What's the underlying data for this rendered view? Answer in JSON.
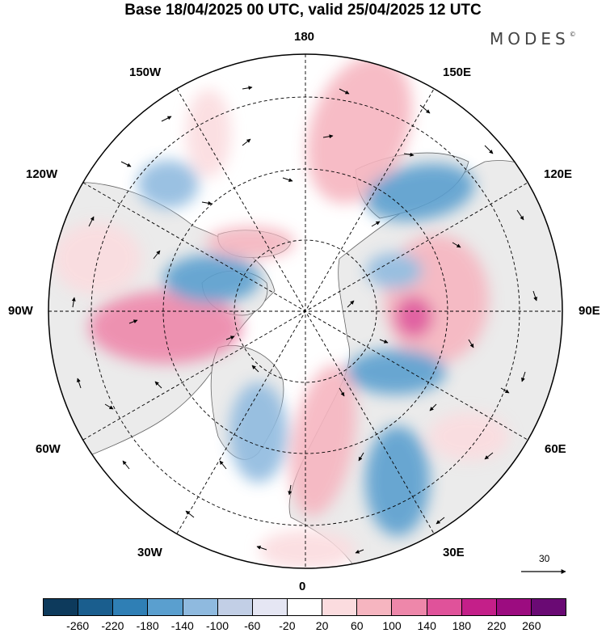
{
  "title": "Base 18/04/2025 00 UTC, valid 25/04/2025 12 UTC",
  "brand": "MODES",
  "brand_mark": "©",
  "longitude_labels": {
    "top": "180",
    "bottom": "0",
    "left": "90W",
    "right": "90E",
    "upper_left_1": "150W",
    "upper_left_2": "120W",
    "upper_right_1": "150E",
    "upper_right_2": "120E",
    "lower_left_1": "60W",
    "lower_left_2": "30W",
    "lower_right_1": "60E",
    "lower_right_2": "30E"
  },
  "reference_vector": {
    "value": "30",
    "icon": "arrow-right-icon"
  },
  "colorbar": {
    "colors": [
      "#0d3a5c",
      "#1a5e8e",
      "#2f7fb5",
      "#5a9fcf",
      "#8fbadf",
      "#c2cfe6",
      "#e5e6f3",
      "#ffffff",
      "#fbdcdf",
      "#f6b5c0",
      "#ee87aa",
      "#e0529a",
      "#c41f89",
      "#9c0c80",
      "#6a0a74"
    ],
    "ticks": [
      "-260",
      "-220",
      "-180",
      "-140",
      "-100",
      "-60",
      "-20",
      "20",
      "60",
      "100",
      "140",
      "180",
      "220",
      "260"
    ]
  },
  "colors": {
    "land": "#ebebeb",
    "ocean": "#ffffff",
    "coast": "#555555"
  }
}
